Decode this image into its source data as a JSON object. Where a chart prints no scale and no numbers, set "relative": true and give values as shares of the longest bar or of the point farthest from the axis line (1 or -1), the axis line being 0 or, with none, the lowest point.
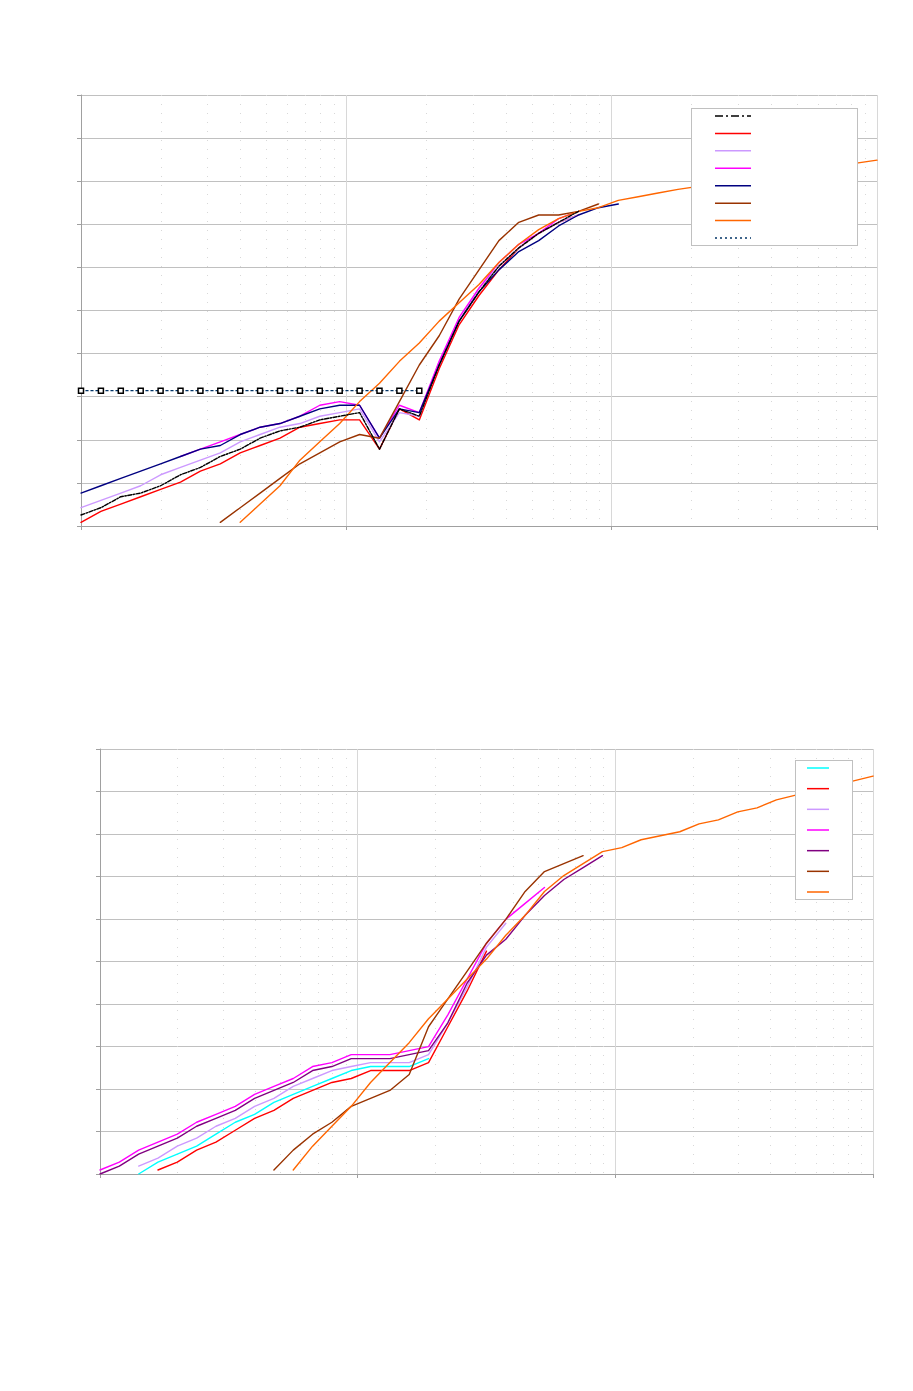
{
  "chart_data": [
    {
      "type": "line",
      "relative": true,
      "tick_labels": false,
      "grid": true,
      "marker": "none",
      "line_style": "solid",
      "categories": [
        null,
        null,
        null,
        null,
        null,
        null,
        null,
        null,
        null,
        null,
        null,
        null,
        null,
        null,
        null,
        null,
        null,
        null,
        null,
        null,
        null,
        null,
        null,
        null,
        null,
        null,
        null,
        null,
        null,
        null,
        null,
        null,
        null,
        null,
        null,
        null,
        null,
        null,
        null,
        null,
        null
      ],
      "series": [
        {
          "color": "#000000",
          "line_style": "dashed",
          "values": [
            0.03,
            0.05,
            0.08,
            0.09,
            0.11,
            0.14,
            0.16,
            0.19,
            0.21,
            0.24,
            0.26,
            0.27,
            0.29,
            0.3,
            0.31,
            0.21,
            0.32,
            0.3,
            0.44,
            0.56,
            0.64,
            0.71,
            0.76,
            0.8,
            0.83,
            0.86,
            null,
            null,
            null,
            null,
            null,
            null,
            null,
            null,
            null,
            null,
            null,
            null,
            null,
            null,
            null
          ]
        },
        {
          "color": "#ff0000",
          "values": [
            0.01,
            0.04,
            0.06,
            0.08,
            0.1,
            0.12,
            0.15,
            0.17,
            0.2,
            0.22,
            0.24,
            0.27,
            0.28,
            0.29,
            0.29,
            0.21,
            0.32,
            0.29,
            0.43,
            0.55,
            0.63,
            0.7,
            0.76,
            0.8,
            0.83,
            0.85,
            null,
            null,
            null,
            null,
            null,
            null,
            null,
            null,
            null,
            null,
            null,
            null,
            null,
            null,
            null
          ]
        },
        {
          "color": "#cc99ff",
          "values": [
            0.05,
            0.07,
            0.09,
            0.11,
            0.14,
            0.16,
            0.18,
            0.2,
            0.23,
            0.25,
            0.27,
            0.28,
            0.3,
            0.31,
            0.32,
            0.23,
            0.31,
            0.3,
            0.45,
            0.56,
            0.65,
            0.71,
            0.76,
            0.8,
            0.83,
            0.85,
            null,
            null,
            null,
            null,
            null,
            null,
            null,
            null,
            null,
            null,
            null,
            null,
            null,
            null,
            null
          ]
        },
        {
          "color": "#ff00ff",
          "values": [
            null,
            null,
            null,
            null,
            null,
            0.19,
            0.21,
            0.23,
            0.25,
            0.27,
            0.28,
            0.3,
            0.33,
            0.34,
            0.33,
            0.24,
            0.33,
            0.31,
            0.45,
            0.57,
            0.65,
            0.72,
            0.77,
            0.8,
            0.84,
            0.86,
            null,
            null,
            null,
            null,
            null,
            null,
            null,
            null,
            null,
            null,
            null,
            null,
            null,
            null,
            null
          ]
        },
        {
          "color": "#000080",
          "values": [
            0.09,
            0.11,
            0.13,
            0.15,
            0.17,
            0.19,
            0.21,
            0.22,
            0.25,
            0.27,
            0.28,
            0.3,
            0.32,
            0.33,
            0.33,
            0.24,
            0.32,
            0.31,
            0.44,
            0.56,
            0.64,
            0.7,
            0.75,
            0.78,
            0.82,
            0.85,
            0.87,
            0.88,
            null,
            null,
            null,
            null,
            null,
            null,
            null,
            null,
            null,
            null,
            null,
            null,
            null
          ]
        },
        {
          "color": "#993300",
          "values": [
            null,
            null,
            null,
            null,
            null,
            null,
            null,
            0.01,
            0.05,
            0.09,
            0.13,
            0.17,
            0.2,
            0.23,
            0.25,
            0.24,
            0.34,
            0.44,
            0.52,
            0.62,
            0.7,
            0.78,
            0.83,
            0.85,
            0.85,
            0.86,
            0.88,
            null,
            null,
            null,
            null,
            null,
            null,
            null,
            null,
            null,
            null,
            null,
            null,
            null,
            null
          ]
        },
        {
          "color": "#ff6600",
          "values": [
            null,
            null,
            null,
            null,
            null,
            null,
            null,
            null,
            0.01,
            0.06,
            0.11,
            0.18,
            0.23,
            0.28,
            0.34,
            0.39,
            0.45,
            0.5,
            0.56,
            0.61,
            0.66,
            0.72,
            0.77,
            0.81,
            0.84,
            0.86,
            0.87,
            0.89,
            0.9,
            0.91,
            0.92,
            null,
            null,
            null,
            null,
            null,
            null,
            null,
            null,
            null,
            1.0
          ]
        },
        {
          "color": "#003366",
          "line_style": "dotted",
          "marker": "square",
          "values": [
            0.37,
            0.37,
            0.37,
            0.37,
            0.37,
            0.37,
            0.37,
            0.37,
            0.37,
            0.37,
            0.37,
            0.37,
            0.37,
            0.37,
            0.37,
            0.37,
            0.37,
            0.37,
            null,
            null,
            null,
            null,
            null,
            null,
            null,
            null,
            null,
            null,
            null,
            null,
            null,
            null,
            null,
            null,
            null,
            null,
            null,
            null,
            null,
            null,
            null
          ]
        }
      ]
    },
    {
      "type": "line",
      "relative": true,
      "tick_labels": false,
      "grid": true,
      "marker": "none",
      "line_style": "solid",
      "categories": [
        null,
        null,
        null,
        null,
        null,
        null,
        null,
        null,
        null,
        null,
        null,
        null,
        null,
        null,
        null,
        null,
        null,
        null,
        null,
        null,
        null,
        null,
        null,
        null,
        null,
        null,
        null,
        null,
        null,
        null,
        null,
        null,
        null,
        null,
        null,
        null,
        null,
        null,
        null,
        null,
        null
      ],
      "series": [
        {
          "color": "#00ffff",
          "values": [
            null,
            null,
            0.0,
            0.03,
            0.05,
            0.07,
            0.1,
            0.13,
            0.15,
            0.18,
            0.2,
            0.22,
            0.24,
            0.26,
            0.27,
            0.27,
            0.27,
            0.29,
            null,
            null,
            null,
            null,
            null,
            null,
            null,
            null,
            null,
            null,
            null,
            null,
            null,
            null,
            null,
            null,
            null,
            null,
            null,
            null,
            null,
            null,
            null
          ]
        },
        {
          "color": "#ff0000",
          "values": [
            null,
            null,
            null,
            0.01,
            0.03,
            0.06,
            0.08,
            0.11,
            0.14,
            0.16,
            0.19,
            0.21,
            0.23,
            0.24,
            0.26,
            0.26,
            0.26,
            0.28,
            0.37,
            0.46,
            0.56,
            null,
            null,
            null,
            null,
            null,
            null,
            null,
            null,
            null,
            null,
            null,
            null,
            null,
            null,
            null,
            null,
            null,
            null,
            null,
            null
          ]
        },
        {
          "color": "#cc99ff",
          "values": [
            null,
            null,
            0.02,
            0.04,
            0.07,
            0.09,
            0.12,
            0.14,
            0.17,
            0.19,
            0.22,
            0.24,
            0.26,
            0.27,
            0.28,
            0.28,
            0.28,
            0.3,
            0.38,
            0.47,
            0.57,
            0.63,
            null,
            null,
            null,
            null,
            null,
            null,
            null,
            null,
            null,
            null,
            null,
            null,
            null,
            null,
            null,
            null,
            null,
            null,
            null
          ]
        },
        {
          "color": "#ff00ff",
          "values": [
            0.01,
            0.03,
            0.06,
            0.08,
            0.1,
            0.13,
            0.15,
            0.17,
            0.2,
            0.22,
            0.24,
            0.27,
            0.28,
            0.3,
            0.3,
            0.3,
            0.31,
            0.32,
            0.4,
            0.49,
            0.58,
            0.64,
            0.68,
            0.72,
            null,
            null,
            null,
            null,
            null,
            null,
            null,
            null,
            null,
            null,
            null,
            null,
            null,
            null,
            null,
            null,
            null
          ]
        },
        {
          "color": "#800080",
          "values": [
            0.0,
            0.02,
            0.05,
            0.07,
            0.09,
            0.12,
            0.14,
            0.16,
            0.19,
            0.21,
            0.23,
            0.26,
            0.27,
            0.29,
            0.29,
            0.29,
            0.3,
            0.31,
            0.38,
            0.48,
            0.55,
            0.59,
            0.65,
            0.7,
            0.74,
            0.77,
            0.8,
            null,
            null,
            null,
            null,
            null,
            null,
            null,
            null,
            null,
            null,
            null,
            null,
            null,
            null
          ]
        },
        {
          "color": "#993300",
          "values": [
            null,
            null,
            null,
            null,
            null,
            null,
            null,
            null,
            null,
            0.01,
            0.06,
            0.1,
            0.13,
            0.17,
            0.19,
            0.21,
            0.25,
            0.37,
            0.44,
            0.51,
            0.58,
            0.64,
            0.71,
            0.76,
            0.78,
            0.8,
            null,
            null,
            null,
            null,
            null,
            null,
            null,
            null,
            null,
            null,
            null,
            null,
            null,
            null,
            null
          ]
        },
        {
          "color": "#ff6600",
          "values": [
            null,
            null,
            null,
            null,
            null,
            null,
            null,
            null,
            null,
            null,
            0.01,
            0.07,
            0.12,
            0.17,
            0.23,
            0.28,
            0.33,
            0.39,
            0.44,
            0.49,
            0.54,
            0.6,
            0.65,
            0.71,
            0.75,
            0.78,
            0.81,
            0.82,
            0.84,
            0.85,
            0.86,
            0.88,
            0.89,
            0.91,
            0.92,
            0.94,
            null,
            null,
            null,
            null,
            1.0
          ]
        }
      ]
    }
  ]
}
